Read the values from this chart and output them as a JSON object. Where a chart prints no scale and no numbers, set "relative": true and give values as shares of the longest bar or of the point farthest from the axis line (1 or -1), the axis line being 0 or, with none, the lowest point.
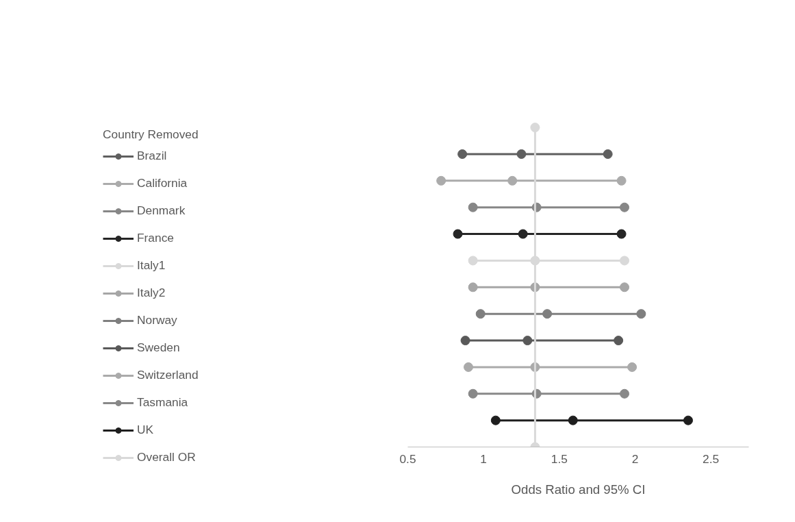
{
  "chart_data": {
    "type": "line",
    "relative": true,
    "xlabel": "Odds Ratio and 95% CI",
    "legend_title": "Country Removed",
    "legend": "left",
    "grid": false,
    "marker": "circle",
    "line_style": "solid",
    "xlim": [
      0.5,
      2.75
    ],
    "xticks": [
      0.5,
      1,
      1.5,
      2,
      2.5
    ],
    "series": [
      {
        "name": "Brazil",
        "color": "#5f5f5f",
        "x": [
          0.86,
          1.25,
          1.82
        ],
        "values": [
          0.9167,
          0.9167,
          0.9167
        ]
      },
      {
        "name": "California",
        "color": "#ababab",
        "x": [
          0.72,
          1.19,
          1.91
        ],
        "values": [
          0.8333,
          0.8333,
          0.8333
        ]
      },
      {
        "name": "Denmark",
        "color": "#878787",
        "x": [
          0.93,
          1.35,
          1.93
        ],
        "values": [
          0.75,
          0.75,
          0.75
        ]
      },
      {
        "name": "France",
        "color": "#262626",
        "x": [
          0.83,
          1.26,
          1.91
        ],
        "values": [
          0.6667,
          0.6667,
          0.6667
        ]
      },
      {
        "name": "Italy1",
        "color": "#d9d9d9",
        "x": [
          0.93,
          1.34,
          1.93
        ],
        "values": [
          0.5833,
          0.5833,
          0.5833
        ]
      },
      {
        "name": "Italy2",
        "color": "#a6a6a6",
        "x": [
          0.93,
          1.34,
          1.93
        ],
        "values": [
          0.5,
          0.5,
          0.5
        ]
      },
      {
        "name": "Norway",
        "color": "#7f7f7f",
        "x": [
          0.98,
          1.42,
          2.04
        ],
        "values": [
          0.4167,
          0.4167,
          0.4167
        ]
      },
      {
        "name": "Sweden",
        "color": "#595959",
        "x": [
          0.88,
          1.29,
          1.89
        ],
        "values": [
          0.3333,
          0.3333,
          0.3333
        ]
      },
      {
        "name": "Switzerland",
        "color": "#aaaaaa",
        "x": [
          0.9,
          1.34,
          1.98
        ],
        "values": [
          0.25,
          0.25,
          0.25
        ]
      },
      {
        "name": "Tasmania",
        "color": "#888888",
        "x": [
          0.93,
          1.35,
          1.93
        ],
        "values": [
          0.1667,
          0.1667,
          0.1667
        ]
      },
      {
        "name": "UK",
        "color": "#1e1e1e",
        "x": [
          1.08,
          1.59,
          2.35
        ],
        "values": [
          0.0833,
          0.0833,
          0.0833
        ]
      },
      {
        "name": "Overall OR",
        "color": "#d9d9d9",
        "x": [
          1.34,
          1.34
        ],
        "values": [
          1,
          0
        ]
      }
    ]
  }
}
